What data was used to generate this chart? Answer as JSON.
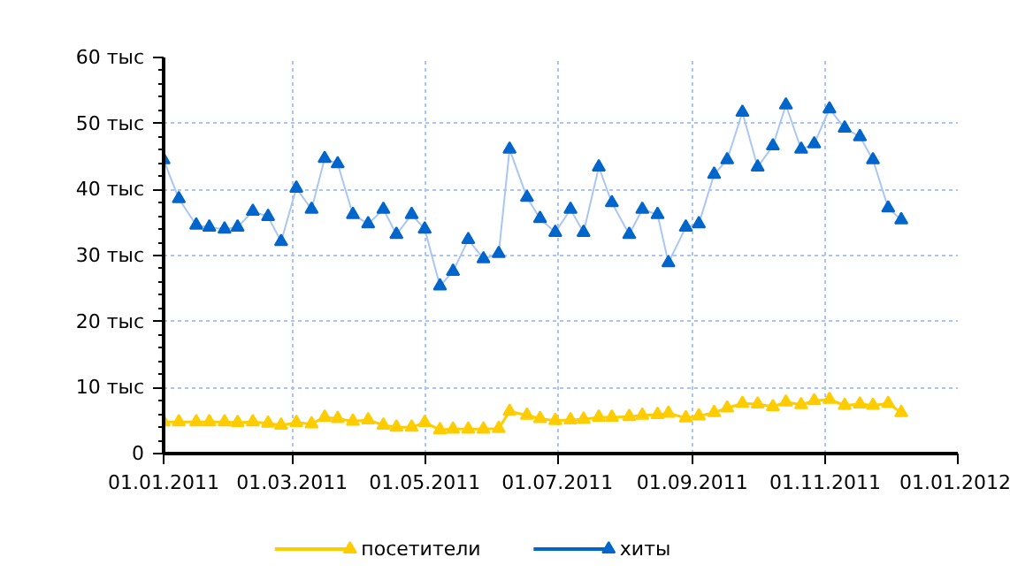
{
  "chart_data": {
    "type": "line",
    "x": [
      "2011-01-01",
      "2011-01-08",
      "2011-01-16",
      "2011-01-22",
      "2011-01-29",
      "2011-02-04",
      "2011-02-11",
      "2011-02-18",
      "2011-02-24",
      "2011-03-03",
      "2011-03-10",
      "2011-03-16",
      "2011-03-22",
      "2011-03-29",
      "2011-04-05",
      "2011-04-12",
      "2011-04-18",
      "2011-04-25",
      "2011-05-01",
      "2011-05-08",
      "2011-05-14",
      "2011-05-21",
      "2011-05-28",
      "2011-06-04",
      "2011-06-09",
      "2011-06-17",
      "2011-06-23",
      "2011-06-30",
      "2011-07-07",
      "2011-07-13",
      "2011-07-20",
      "2011-07-26",
      "2011-08-03",
      "2011-08-09",
      "2011-08-16",
      "2011-08-21",
      "2011-08-29",
      "2011-09-04",
      "2011-09-11",
      "2011-09-17",
      "2011-09-24",
      "2011-10-01",
      "2011-10-08",
      "2011-10-14",
      "2011-10-21",
      "2011-10-27",
      "2011-11-03",
      "2011-11-10",
      "2011-11-17",
      "2011-11-23",
      "2011-11-30",
      "2011-12-06"
    ],
    "series": [
      {
        "name": "посетители",
        "color": "#ffcc00",
        "values": [
          4.8,
          4.8,
          4.8,
          4.8,
          4.8,
          4.7,
          4.8,
          4.6,
          4.3,
          4.7,
          4.5,
          5.5,
          5.3,
          4.9,
          5.1,
          4.3,
          4.0,
          4.0,
          4.7,
          3.6,
          3.7,
          3.7,
          3.7,
          3.8,
          6.4,
          5.8,
          5.3,
          5.0,
          5.1,
          5.2,
          5.5,
          5.5,
          5.6,
          5.8,
          5.9,
          6.1,
          5.4,
          5.7,
          6.2,
          6.9,
          7.6,
          7.5,
          7.1,
          7.8,
          7.4,
          8.0,
          8.2,
          7.3,
          7.5,
          7.3,
          7.6,
          6.2
        ]
      },
      {
        "name": "хиты",
        "color": "#0066cc",
        "values": [
          44.5,
          38.6,
          34.6,
          34.3,
          34.0,
          34.3,
          36.7,
          35.9,
          32.1,
          40.2,
          37.0,
          44.7,
          43.9,
          36.2,
          34.8,
          37.0,
          33.2,
          36.2,
          34.0,
          25.4,
          27.6,
          32.4,
          29.5,
          30.3,
          46.1,
          38.8,
          35.6,
          33.5,
          37.0,
          33.5,
          43.4,
          38.0,
          33.2,
          37.0,
          36.2,
          28.9,
          34.3,
          34.8,
          42.3,
          44.5,
          51.7,
          43.4,
          46.6,
          52.8,
          46.1,
          46.9,
          52.2,
          49.3,
          48.0,
          44.5,
          37.2,
          35.4
        ]
      }
    ],
    "xlim": [
      "2011-01-01",
      "2012-01-01"
    ],
    "xticks": [
      {
        "value": "2011-01-01",
        "label": "01.01.2011"
      },
      {
        "value": "2011-03-01",
        "label": "01.03.2011"
      },
      {
        "value": "2011-05-01",
        "label": "01.05.2011"
      },
      {
        "value": "2011-07-01",
        "label": "01.07.2011"
      },
      {
        "value": "2011-09-01",
        "label": "01.09.2011"
      },
      {
        "value": "2011-11-01",
        "label": "01.11.2011"
      },
      {
        "value": "2012-01-01",
        "label": "01.01.2012"
      }
    ],
    "ylim": [
      0,
      60
    ],
    "yticks": [
      0,
      {
        "value": 10,
        "label": "10 тыс"
      },
      {
        "value": 20,
        "label": "20 тыс"
      },
      {
        "value": 30,
        "label": "30 тыс"
      },
      {
        "value": 40,
        "label": "40 тыс"
      },
      {
        "value": 50,
        "label": "50 тыс"
      },
      {
        "value": 60,
        "label": "60 тыс"
      }
    ],
    "grid": true,
    "legend": "bottom",
    "marker": "triangle",
    "line_style": "solid"
  }
}
